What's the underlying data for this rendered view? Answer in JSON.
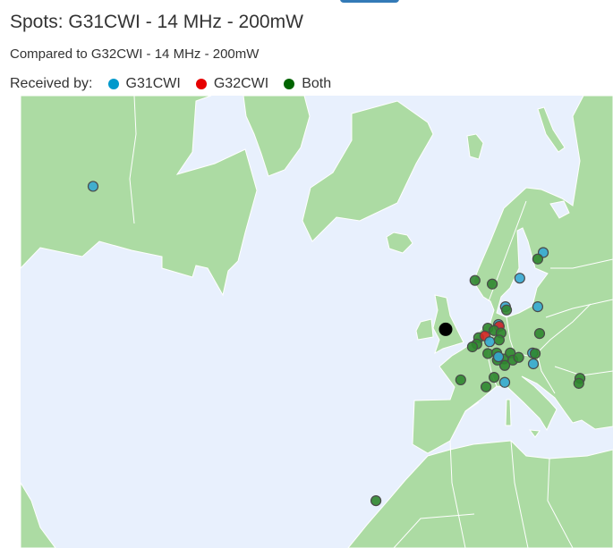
{
  "header": {
    "title": "Spots: G31CWI - 14 MHz - 200mW",
    "subtitle": "Compared to G32CWI - 14 MHz - 200mW"
  },
  "legend": {
    "label": "Received by:",
    "items": [
      {
        "label": "G31CWI",
        "color": "#0099cc"
      },
      {
        "label": "G32CWI",
        "color": "#e60000"
      },
      {
        "label": "Both",
        "color": "#006400"
      }
    ]
  },
  "map": {
    "ocean_color": "#e8f0fd",
    "land_color": "#acdba3",
    "marker_colors": {
      "G31CWI": "#35a9d1",
      "G32CWI": "#d62626",
      "Both": "#2f862f",
      "transmitter": "#000000"
    },
    "transmitter": {
      "lat": 52.5,
      "lon": -2.0
    },
    "spots": [
      {
        "lon": 24.6,
        "lat": 63.5,
        "by": "G31CWI"
      },
      {
        "lon": 23.1,
        "lat": 62.7,
        "by": "Both"
      },
      {
        "lon": 6.0,
        "lat": 59.9,
        "by": "Both"
      },
      {
        "lon": 10.7,
        "lat": 59.4,
        "by": "Both"
      },
      {
        "lon": 18.2,
        "lat": 60.2,
        "by": "G31CWI"
      },
      {
        "lon": 14.3,
        "lat": 56.1,
        "by": "G31CWI"
      },
      {
        "lon": 14.6,
        "lat": 55.6,
        "by": "Both"
      },
      {
        "lon": 23.1,
        "lat": 56.1,
        "by": "G31CWI"
      },
      {
        "lon": 12.4,
        "lat": 53.3,
        "by": "G31CWI"
      },
      {
        "lon": 12.6,
        "lat": 53.0,
        "by": "G32CWI"
      },
      {
        "lon": 9.5,
        "lat": 52.7,
        "by": "Both"
      },
      {
        "lon": 11.2,
        "lat": 52.3,
        "by": "Both"
      },
      {
        "lon": 13.1,
        "lat": 51.9,
        "by": "Both"
      },
      {
        "lon": 7.0,
        "lat": 51.1,
        "by": "Both"
      },
      {
        "lon": 8.7,
        "lat": 51.4,
        "by": "G32CWI"
      },
      {
        "lon": 6.5,
        "lat": 50.0,
        "by": "Both"
      },
      {
        "lon": 5.3,
        "lat": 49.5,
        "by": "Both"
      },
      {
        "lon": 10.0,
        "lat": 50.4,
        "by": "G31CWI"
      },
      {
        "lon": 12.6,
        "lat": 50.7,
        "by": "Both"
      },
      {
        "lon": 23.6,
        "lat": 51.8,
        "by": "Both"
      },
      {
        "lon": 9.5,
        "lat": 48.3,
        "by": "Both"
      },
      {
        "lon": 11.9,
        "lat": 48.4,
        "by": "Both"
      },
      {
        "lon": 13.9,
        "lat": 47.3,
        "by": "Both"
      },
      {
        "lon": 15.6,
        "lat": 48.4,
        "by": "Both"
      },
      {
        "lon": 16.3,
        "lat": 47.1,
        "by": "Both"
      },
      {
        "lon": 17.9,
        "lat": 47.6,
        "by": "Both"
      },
      {
        "lon": 14.1,
        "lat": 46.1,
        "by": "Both"
      },
      {
        "lon": 12.1,
        "lat": 47.1,
        "by": "Both"
      },
      {
        "lon": 12.4,
        "lat": 47.7,
        "by": "G31CWI"
      },
      {
        "lon": 21.7,
        "lat": 48.4,
        "by": "G31CWI"
      },
      {
        "lon": 22.4,
        "lat": 48.3,
        "by": "Both"
      },
      {
        "lon": 21.9,
        "lat": 46.4,
        "by": "G31CWI"
      },
      {
        "lon": 2.1,
        "lat": 43.3,
        "by": "Both"
      },
      {
        "lon": 11.2,
        "lat": 43.8,
        "by": "Both"
      },
      {
        "lon": 9.0,
        "lat": 41.9,
        "by": "Both"
      },
      {
        "lon": 14.1,
        "lat": 42.8,
        "by": "G31CWI"
      },
      {
        "lon": 34.6,
        "lat": 43.6,
        "by": "Both"
      },
      {
        "lon": 34.3,
        "lat": 42.6,
        "by": "Both"
      },
      {
        "lon": -98.1,
        "lat": 70.5,
        "by": "G31CWI"
      },
      {
        "lon": -21.0,
        "lat": 15.0,
        "by": "Both"
      }
    ]
  }
}
